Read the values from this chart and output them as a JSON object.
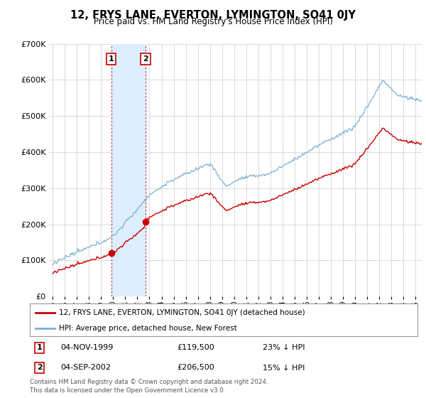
{
  "title": "12, FRYS LANE, EVERTON, LYMINGTON, SO41 0JY",
  "subtitle": "Price paid vs. HM Land Registry's House Price Index (HPI)",
  "ylim": [
    0,
    700000
  ],
  "yticks": [
    0,
    100000,
    200000,
    300000,
    400000,
    500000,
    600000,
    700000
  ],
  "ytick_labels": [
    "£0",
    "£100K",
    "£200K",
    "£300K",
    "£400K",
    "£500K",
    "£600K",
    "£700K"
  ],
  "xlim_start": 1994.7,
  "xlim_end": 2025.5,
  "sale1_year": 1999.84,
  "sale1_price": 119500,
  "sale1_label": "1",
  "sale1_date": "04-NOV-1999",
  "sale2_year": 2002.67,
  "sale2_price": 206500,
  "sale2_label": "2",
  "sale2_date": "04-SEP-2002",
  "red_color": "#cc0000",
  "blue_color": "#7bafd4",
  "shade_color": "#ddeeff",
  "legend_line1": "12, FRYS LANE, EVERTON, LYMINGTON, SO41 0JY (detached house)",
  "legend_line2": "HPI: Average price, detached house, New Forest",
  "sale1_price_str": "£119,500",
  "sale1_pct": "23% ↓ HPI",
  "sale2_price_str": "£206,500",
  "sale2_pct": "15% ↓ HPI",
  "footer": "Contains HM Land Registry data © Crown copyright and database right 2024.\nThis data is licensed under the Open Government Licence v3.0.",
  "background_color": "#ffffff",
  "grid_color": "#cccccc"
}
